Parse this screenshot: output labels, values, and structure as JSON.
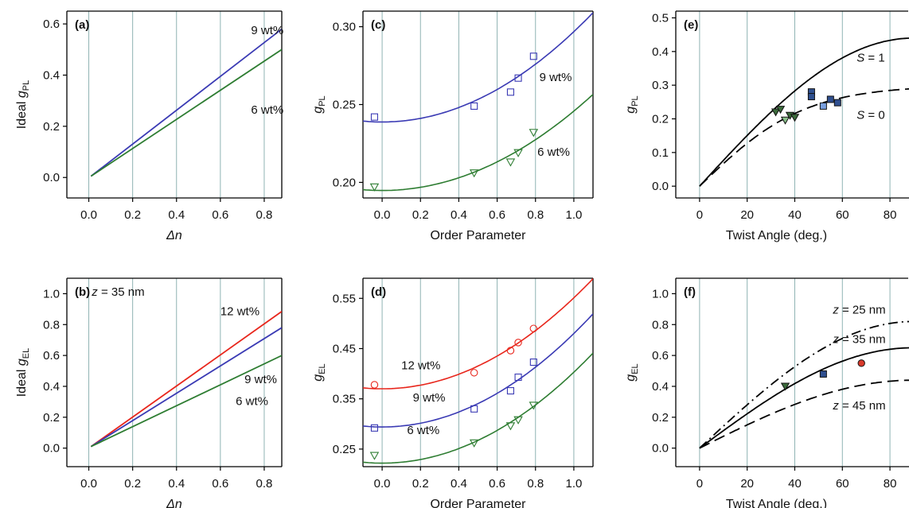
{
  "colors": {
    "blue": "#3a3ab4",
    "green": "#2e7d32",
    "red": "#e8261c",
    "black": "#000000",
    "grid": "#8fb3b3",
    "marker_blue_fill": "#2f4f8f",
    "marker_green_fill": "#3b6b3b",
    "marker_light_blue": "#7aa0e0",
    "marker_light_green": "#88c088",
    "marker_red_fill": "#d93a2b"
  },
  "chart_data": [
    {
      "id": "a",
      "panel_label": "(a)",
      "type": "line",
      "xlabel": "Δn",
      "ylabel": "Ideal g",
      "ylabel_sub": "PL",
      "xlim": [
        -0.1,
        0.88
      ],
      "ylim": [
        -0.08,
        0.65
      ],
      "xticks": [
        "0.0",
        "0.2",
        "0.4",
        "0.6",
        "0.8"
      ],
      "xtick_values": [
        0,
        0.2,
        0.4,
        0.6,
        0.8
      ],
      "yticks": [
        "0.0",
        "0.2",
        "0.4",
        "0.6"
      ],
      "ytick_values": [
        0,
        0.2,
        0.4,
        0.6
      ],
      "grid": "vertical",
      "series": [
        {
          "name": "9 wt%",
          "color": "blue",
          "style": "solid",
          "x": [
            0.01,
            0.88
          ],
          "y": [
            0.005,
            0.58
          ]
        },
        {
          "name": "6 wt%",
          "color": "green",
          "style": "solid",
          "x": [
            0.01,
            0.88
          ],
          "y": [
            0.005,
            0.5
          ]
        }
      ],
      "labels": [
        {
          "text": "9 wt%",
          "color": "blue",
          "x": 0.74,
          "y": 0.56
        },
        {
          "text": "6 wt%",
          "color": "green",
          "x": 0.74,
          "y": 0.25
        }
      ]
    },
    {
      "id": "b",
      "panel_label": "(b)",
      "type": "line",
      "xlabel": "Δn",
      "ylabel": "Ideal g",
      "ylabel_sub": "EL",
      "xlim": [
        -0.1,
        0.88
      ],
      "ylim": [
        -0.12,
        1.1
      ],
      "xticks": [
        "0.0",
        "0.2",
        "0.4",
        "0.6",
        "0.8"
      ],
      "xtick_values": [
        0,
        0.2,
        0.4,
        0.6,
        0.8
      ],
      "yticks": [
        "0.0",
        "0.2",
        "0.4",
        "0.6",
        "0.8",
        "1.0"
      ],
      "ytick_values": [
        0,
        0.2,
        0.4,
        0.6,
        0.8,
        1.0
      ],
      "grid": "vertical",
      "annotation": {
        "italic": "z",
        "text": " = 35 nm",
        "x": -0.03,
        "y": 1.0
      },
      "series": [
        {
          "name": "12 wt%",
          "color": "red",
          "style": "solid",
          "x": [
            0.01,
            0.88
          ],
          "y": [
            0.01,
            0.885
          ]
        },
        {
          "name": "9 wt%",
          "color": "blue",
          "style": "solid",
          "x": [
            0.01,
            0.88
          ],
          "y": [
            0.01,
            0.78
          ]
        },
        {
          "name": "6 wt%",
          "color": "green",
          "style": "solid",
          "x": [
            0.01,
            0.88
          ],
          "y": [
            0.01,
            0.6
          ]
        }
      ],
      "labels": [
        {
          "text": "12 wt%",
          "color": "red",
          "x": 0.6,
          "y": 0.86
        },
        {
          "text": "9 wt%",
          "color": "blue",
          "x": 0.71,
          "y": 0.42
        },
        {
          "text": "6 wt%",
          "color": "green",
          "x": 0.67,
          "y": 0.28
        }
      ]
    },
    {
      "id": "c",
      "panel_label": "(c)",
      "type": "scatter",
      "xlabel": "Order Parameter",
      "ylabel": "g",
      "ylabel_sub": "PL",
      "xlim": [
        -0.1,
        1.1
      ],
      "ylim": [
        0.19,
        0.31
      ],
      "xticks": [
        "0.0",
        "0.2",
        "0.4",
        "0.6",
        "0.8",
        "1.0"
      ],
      "xtick_values": [
        0,
        0.2,
        0.4,
        0.6,
        0.8,
        1.0
      ],
      "yticks": [
        "0.20",
        "0.25",
        "0.30"
      ],
      "ytick_values": [
        0.2,
        0.25,
        0.3
      ],
      "grid": "vertical",
      "series": [
        {
          "name": "9 wt%",
          "color": "blue",
          "marker": "square",
          "x": [
            -0.04,
            0.48,
            0.67,
            0.71,
            0.79
          ],
          "y": [
            0.242,
            0.249,
            0.258,
            0.267,
            0.281
          ],
          "fit": {
            "a": 0.2388,
            "b": 0.058
          }
        },
        {
          "name": "6 wt%",
          "color": "green",
          "marker": "triangle-down",
          "x": [
            -0.04,
            0.48,
            0.67,
            0.71,
            0.79
          ],
          "y": [
            0.197,
            0.206,
            0.213,
            0.219,
            0.232
          ],
          "fit": {
            "a": 0.1948,
            "b": 0.051
          }
        }
      ],
      "labels": [
        {
          "text": "9 wt%",
          "color": "blue",
          "x": 0.82,
          "y": 0.265
        },
        {
          "text": "6 wt%",
          "color": "green",
          "x": 0.81,
          "y": 0.217
        }
      ]
    },
    {
      "id": "d",
      "panel_label": "(d)",
      "type": "scatter",
      "xlabel": "Order Parameter",
      "ylabel": "g",
      "ylabel_sub": "EL",
      "xlim": [
        -0.1,
        1.1
      ],
      "ylim": [
        0.215,
        0.59
      ],
      "xticks": [
        "0.0",
        "0.2",
        "0.4",
        "0.6",
        "0.8",
        "1.0"
      ],
      "xtick_values": [
        0,
        0.2,
        0.4,
        0.6,
        0.8,
        1.0
      ],
      "yticks": [
        "0.25",
        "0.35",
        "0.45",
        "0.55"
      ],
      "ytick_values": [
        0.25,
        0.35,
        0.45,
        0.55
      ],
      "grid": "vertical",
      "series": [
        {
          "name": "12 wt%",
          "color": "red",
          "marker": "circle",
          "x": [
            -0.04,
            0.48,
            0.67,
            0.71,
            0.79
          ],
          "y": [
            0.378,
            0.402,
            0.446,
            0.462,
            0.49
          ],
          "fit": {
            "a": 0.37,
            "b": 0.181
          }
        },
        {
          "name": "9 wt%",
          "color": "blue",
          "marker": "square",
          "x": [
            -0.04,
            0.48,
            0.67,
            0.71,
            0.79
          ],
          "y": [
            0.292,
            0.33,
            0.366,
            0.393,
            0.423
          ],
          "fit": {
            "a": 0.294,
            "b": 0.186
          }
        },
        {
          "name": "6 wt%",
          "color": "green",
          "marker": "triangle-down",
          "x": [
            -0.04,
            0.48,
            0.67,
            0.71,
            0.79
          ],
          "y": [
            0.237,
            0.262,
            0.296,
            0.308,
            0.337
          ],
          "fit": {
            "a": 0.222,
            "b": 0.181
          }
        }
      ],
      "labels": [
        {
          "text": "12 wt%",
          "color": "red",
          "x": 0.1,
          "y": 0.409
        },
        {
          "text": "9 wt%",
          "color": "blue",
          "x": 0.16,
          "y": 0.345
        },
        {
          "text": "6 wt%",
          "color": "green",
          "x": 0.13,
          "y": 0.28
        }
      ]
    },
    {
      "id": "e",
      "panel_label": "(e)",
      "type": "scatter",
      "xlabel": "Twist Angle (deg.)",
      "ylabel": "g",
      "ylabel_sub": "PL",
      "xlim": [
        -10,
        88
      ],
      "ylim": [
        -0.035,
        0.52
      ],
      "xticks": [
        "0",
        "20",
        "40",
        "60",
        "80"
      ],
      "xtick_values": [
        0,
        20,
        40,
        60,
        80
      ],
      "yticks": [
        "0.0",
        "0.1",
        "0.2",
        "0.3",
        "0.4",
        "0.5"
      ],
      "ytick_values": [
        0,
        0.1,
        0.2,
        0.3,
        0.4,
        0.5
      ],
      "grid": "vertical",
      "curves": [
        {
          "name": "S = 1",
          "style": "solid",
          "amplitude": 0.44
        },
        {
          "name": "S = 0",
          "style": "dashed",
          "amplitude": 0.3,
          "slope0": 0.0068
        }
      ],
      "labels": [
        {
          "italic": "S",
          "text": " = 1",
          "x": 66,
          "y": 0.37
        },
        {
          "italic": "S",
          "text": " = 0",
          "x": 66,
          "y": 0.2
        }
      ],
      "points": [
        {
          "x": 47,
          "y": 0.28,
          "marker": "square",
          "fill": "marker_blue_fill"
        },
        {
          "x": 47,
          "y": 0.266,
          "marker": "square",
          "fill": "marker_blue_fill"
        },
        {
          "x": 52,
          "y": 0.238,
          "marker": "square",
          "fill": "marker_light_blue"
        },
        {
          "x": 55,
          "y": 0.258,
          "marker": "square",
          "fill": "marker_blue_fill"
        },
        {
          "x": 58,
          "y": 0.248,
          "marker": "square",
          "fill": "marker_blue_fill"
        },
        {
          "x": 32,
          "y": 0.22,
          "marker": "triangle-down",
          "fill": "marker_green_fill"
        },
        {
          "x": 34,
          "y": 0.228,
          "marker": "triangle-down",
          "fill": "marker_green_fill"
        },
        {
          "x": 36,
          "y": 0.196,
          "marker": "triangle-down",
          "fill": "marker_light_green"
        },
        {
          "x": 38,
          "y": 0.21,
          "marker": "triangle-down",
          "fill": "marker_green_fill"
        },
        {
          "x": 40,
          "y": 0.204,
          "marker": "triangle-down",
          "fill": "marker_green_fill"
        }
      ]
    },
    {
      "id": "f",
      "panel_label": "(f)",
      "type": "scatter",
      "xlabel": "Twist Angle (deg.)",
      "ylabel": "g",
      "ylabel_sub": "EL",
      "xlim": [
        -10,
        88
      ],
      "ylim": [
        -0.12,
        1.1
      ],
      "xticks": [
        "0",
        "20",
        "40",
        "60",
        "80"
      ],
      "xtick_values": [
        0,
        20,
        40,
        60,
        80
      ],
      "yticks": [
        "0.0",
        "0.2",
        "0.4",
        "0.6",
        "0.8",
        "1.0"
      ],
      "ytick_values": [
        0,
        0.2,
        0.4,
        0.6,
        0.8,
        1.0
      ],
      "grid": "vertical",
      "curves": [
        {
          "name": "z = 25 nm",
          "style": "dashdot",
          "amplitude": 0.82
        },
        {
          "name": "z = 35 nm",
          "style": "solid",
          "amplitude": 0.65
        },
        {
          "name": "z = 45 nm",
          "style": "dashed",
          "amplitude": 0.44
        }
      ],
      "labels": [
        {
          "italic": "z",
          "text": " = 25 nm",
          "x": 56,
          "y": 0.87
        },
        {
          "italic": "z",
          "text": " = 35 nm",
          "x": 56,
          "y": 0.68
        },
        {
          "italic": "z",
          "text": " = 45 nm",
          "x": 56,
          "y": 0.25
        }
      ],
      "points": [
        {
          "x": 36,
          "y": 0.4,
          "marker": "triangle-down",
          "fill": "marker_green_fill"
        },
        {
          "x": 52,
          "y": 0.48,
          "marker": "square",
          "fill": "marker_blue_fill"
        },
        {
          "x": 68,
          "y": 0.55,
          "marker": "circle",
          "fill": "marker_red_fill"
        }
      ]
    }
  ]
}
